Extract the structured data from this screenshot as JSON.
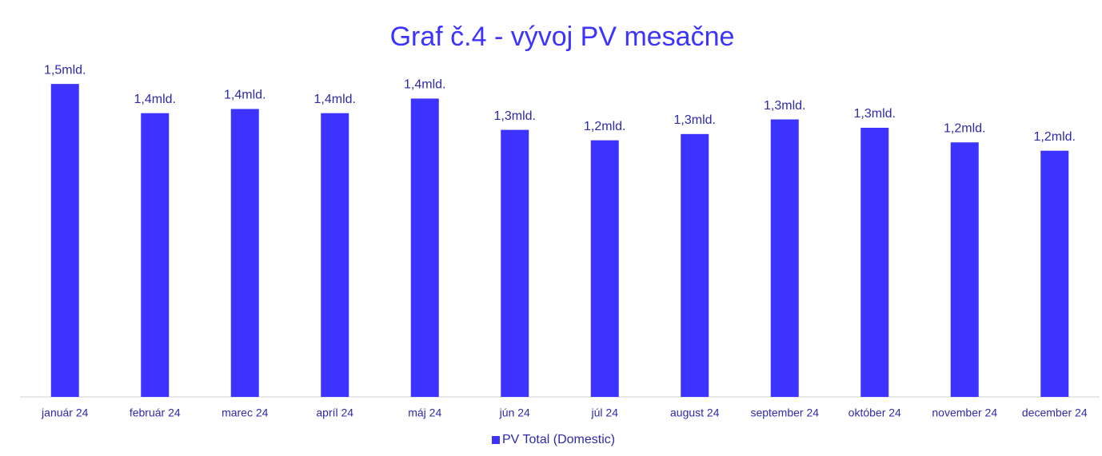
{
  "chart_data": {
    "type": "bar",
    "title": "Graf č.4 - vývoj PV mesačne",
    "categories": [
      "január 24",
      "február 24",
      "marec 24",
      "apríl 24",
      "máj 24",
      "jún 24",
      "júl 24",
      "august 24",
      "september 24",
      "október 24",
      "november 24",
      "december 24"
    ],
    "series": [
      {
        "name": "PV Total (Domestic)",
        "color": "#3c33ff",
        "values": [
          1.5,
          1.36,
          1.38,
          1.36,
          1.43,
          1.28,
          1.23,
          1.26,
          1.33,
          1.29,
          1.22,
          1.18
        ],
        "value_labels": [
          "1,5mld.",
          "1,4mld.",
          "1,4mld.",
          "1,4mld.",
          "1,4mld.",
          "1,3mld.",
          "1,2mld.",
          "1,3mld.",
          "1,3mld.",
          "1,3mld.",
          "1,2mld.",
          "1,2mld."
        ]
      }
    ],
    "ylim": [
      0,
      1.6
    ],
    "legend": "bottom"
  }
}
